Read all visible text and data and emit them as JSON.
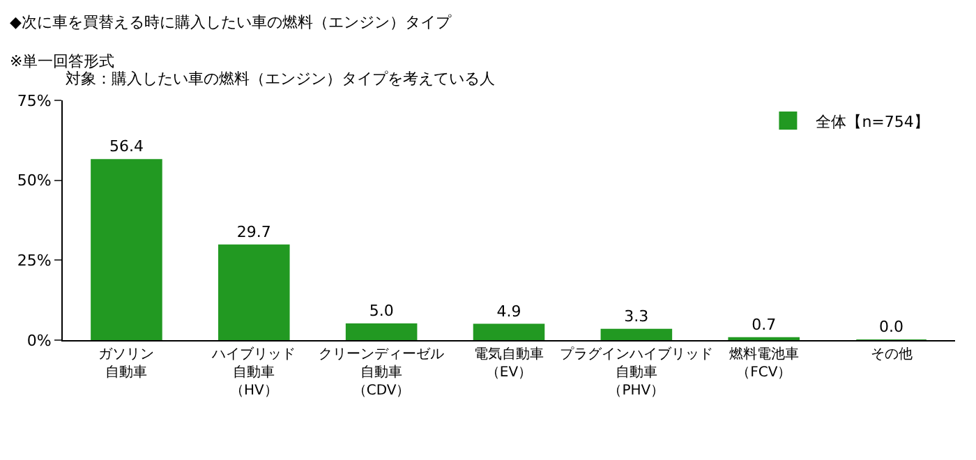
{
  "chart_data": {
    "type": "bar",
    "title": "◆次に車を買替える時に購入したい車の燃料（エンジン）タイプ",
    "subtitle": "※単一回答形式",
    "annotations": [
      "対象：購入したい車の燃料（エンジン）タイプを考えている人"
    ],
    "categories": [
      "ガソリン自動車",
      "ハイブリッド自動車（HV）",
      "クリーンディーゼル自動車（CDV）",
      "電気自動車（EV）",
      "プラグインハイブリッド自動車（PHV）",
      "燃料電池車（FCV）",
      "その他"
    ],
    "series": [
      {
        "name": "全体【n=754】",
        "color": "#229922",
        "values": [
          56.4,
          29.7,
          5.0,
          4.9,
          3.3,
          0.7,
          0.0
        ]
      }
    ],
    "value_labels": [
      "56.4",
      "29.7",
      "5.0",
      "4.9",
      "3.3",
      "0.7",
      "0.0"
    ],
    "ylim": [
      0,
      75
    ],
    "yticks": [
      {
        "value": 0,
        "label": "0%"
      },
      {
        "value": 25,
        "label": "25%"
      },
      {
        "value": 50,
        "label": "50%"
      },
      {
        "value": 75,
        "label": "75%"
      }
    ],
    "legend": "top right"
  }
}
